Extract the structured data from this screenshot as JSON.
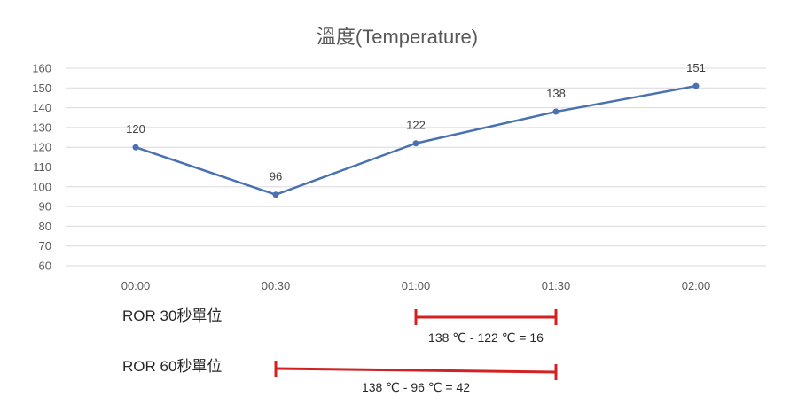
{
  "chart_data": {
    "type": "line",
    "title": "溫度(Temperature)",
    "categories": [
      "00:00",
      "00:30",
      "01:00",
      "01:30",
      "02:00"
    ],
    "series": [
      {
        "values": [
          120,
          96,
          122,
          138,
          151
        ],
        "color": "#4A72B0"
      }
    ],
    "ylim": [
      60,
      160
    ],
    "yticks": [
      60,
      70,
      80,
      90,
      100,
      110,
      120,
      130,
      140,
      150,
      160
    ],
    "grid": true,
    "data_labels": true
  },
  "annotations": {
    "color": "#D32020",
    "ror30": {
      "label": "ROR 30秒單位",
      "from_category": "01:00",
      "to_category": "01:30",
      "equation": "138 ℃ - 122 ℃ = 16"
    },
    "ror60": {
      "label": "ROR 60秒單位",
      "from_category": "00:30",
      "to_category": "01:30",
      "equation": "138 ℃ - 96 ℃ = 42"
    }
  }
}
